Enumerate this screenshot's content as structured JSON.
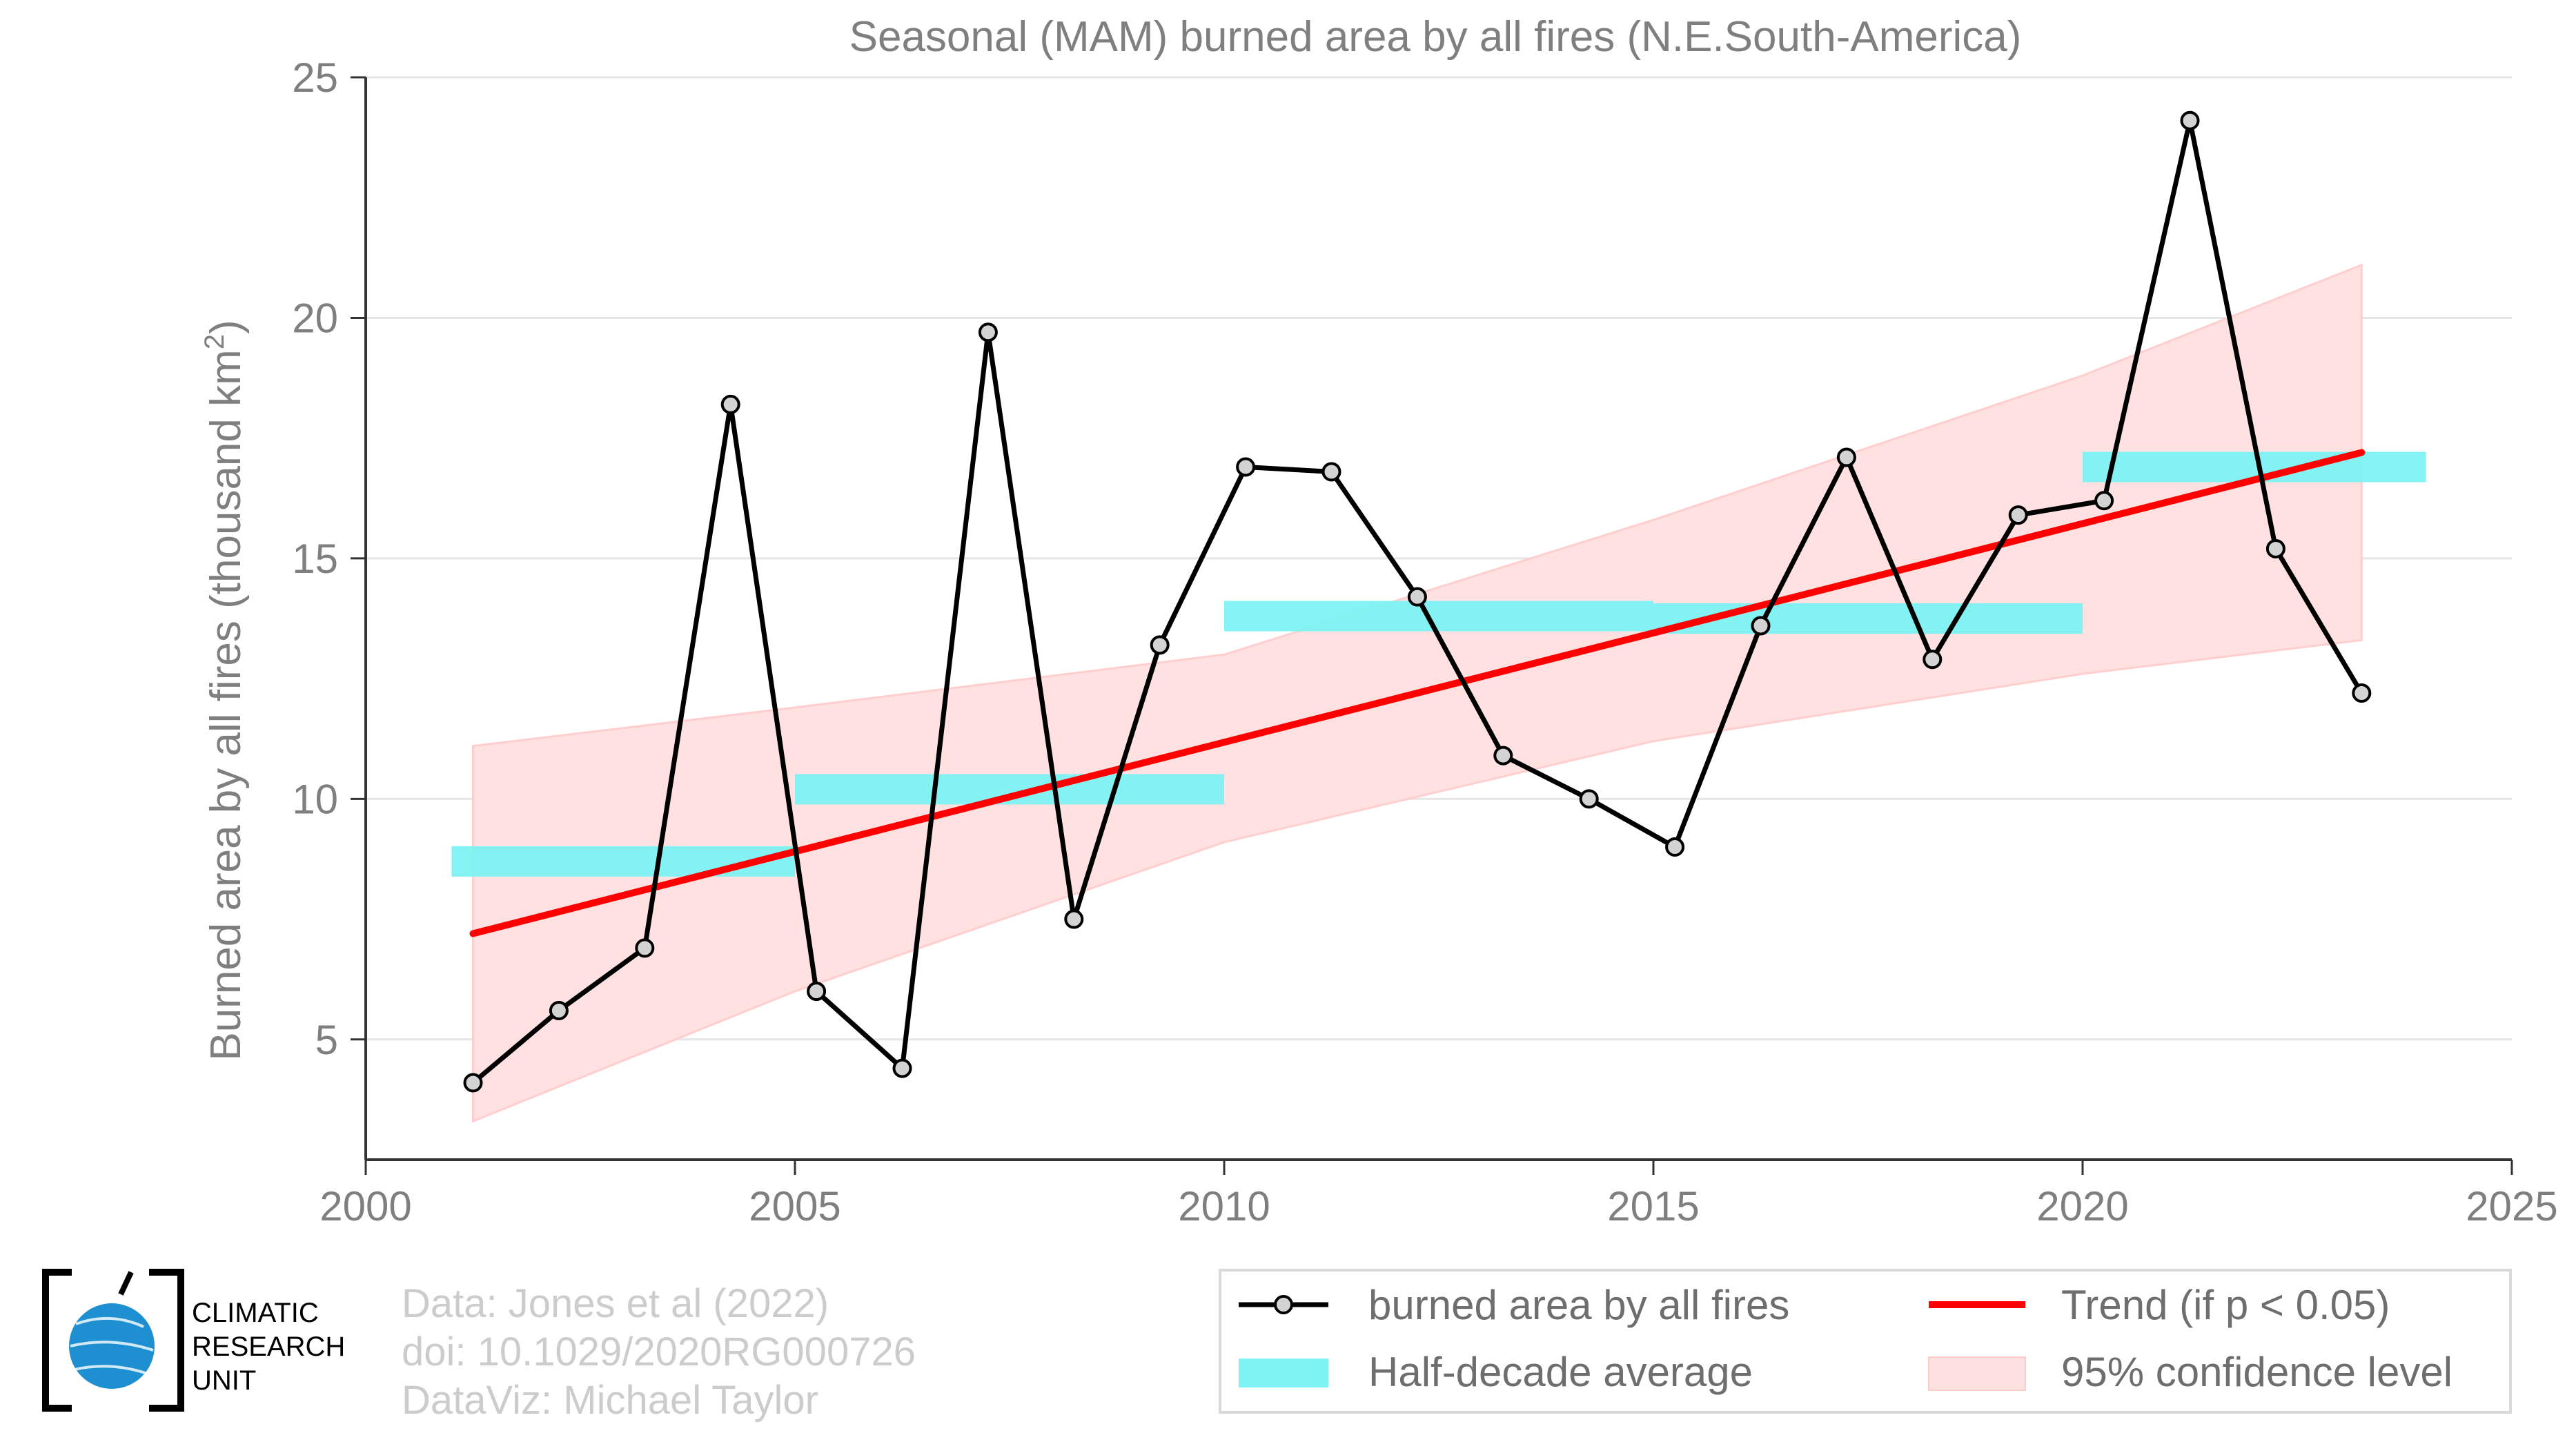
{
  "chart_data": {
    "type": "line",
    "title": "Seasonal (MAM) burned area by all fires (N.E.South-America)",
    "xlabel": "",
    "ylabel": "Burned area by all fires (thousand km",
    "ylabel_sup": "2",
    "ylabel_close": ")",
    "xlim": [
      2000,
      2025
    ],
    "ylim": [
      2.5,
      25
    ],
    "xticks": [
      2000,
      2005,
      2010,
      2015,
      2020,
      2025
    ],
    "yticks": [
      5,
      10,
      15,
      20,
      25
    ],
    "grid": "horizontal",
    "series": [
      {
        "name": "burned area by all fires",
        "style": "line-with-markers",
        "color": "#000000",
        "x": [
          2001.25,
          2002.25,
          2003.25,
          2004.25,
          2005.25,
          2006.25,
          2007.25,
          2008.25,
          2009.25,
          2010.25,
          2011.25,
          2012.25,
          2013.25,
          2014.25,
          2015.25,
          2016.25,
          2017.25,
          2018.25,
          2019.25,
          2020.25,
          2021.25,
          2022.25,
          2023.25
        ],
        "y": [
          4.1,
          5.6,
          6.9,
          18.2,
          6.0,
          4.4,
          19.7,
          7.5,
          13.2,
          16.9,
          16.8,
          14.2,
          10.9,
          10.0,
          9.0,
          13.6,
          17.1,
          12.9,
          15.9,
          16.2,
          24.1,
          15.2,
          12.2
        ]
      },
      {
        "name": "Half-decade average",
        "style": "segments",
        "color": "#7ef3f3",
        "segments": [
          {
            "x0": 2001,
            "x1": 2005,
            "y": 8.7
          },
          {
            "x0": 2005,
            "x1": 2010,
            "y": 10.2
          },
          {
            "x0": 2010,
            "x1": 2015,
            "y": 13.8
          },
          {
            "x0": 2015,
            "x1": 2020,
            "y": 13.75
          },
          {
            "x0": 2020,
            "x1": 2024,
            "y": 16.9
          }
        ]
      },
      {
        "name": "Trend (if p < 0.05)",
        "style": "line",
        "color": "#ff0000",
        "x": [
          2001.25,
          2023.25
        ],
        "y": [
          7.2,
          17.2
        ]
      },
      {
        "name": "95% confidence level",
        "style": "band",
        "color": "#ffe0e0",
        "x": [
          2001.25,
          2005,
          2010,
          2015,
          2020,
          2023.25
        ],
        "lower": [
          3.3,
          6.0,
          9.1,
          11.2,
          12.6,
          13.3
        ],
        "upper": [
          11.1,
          11.9,
          13.0,
          15.8,
          18.8,
          21.1
        ]
      }
    ],
    "legend": {
      "placement": "bottom-right",
      "entries": [
        {
          "label": "burned area by all fires",
          "kind": "line-marker",
          "color": "#000000"
        },
        {
          "label": "Trend (if p < 0.05)",
          "kind": "line",
          "color": "#ff0000"
        },
        {
          "label": "Half-decade average",
          "kind": "bar",
          "color": "#7ef3f3"
        },
        {
          "label": "95% confidence level",
          "kind": "patch",
          "color": "#ffe0e0"
        }
      ]
    }
  },
  "credits": {
    "line1": "Data: Jones et al (2022)",
    "line2": "doi: 10.1029/2020RG000726",
    "line3": "DataViz: Michael Taylor"
  },
  "logo": {
    "line1": "CLIMATIC",
    "line2": "RESEARCH",
    "line3": "UNIT"
  }
}
